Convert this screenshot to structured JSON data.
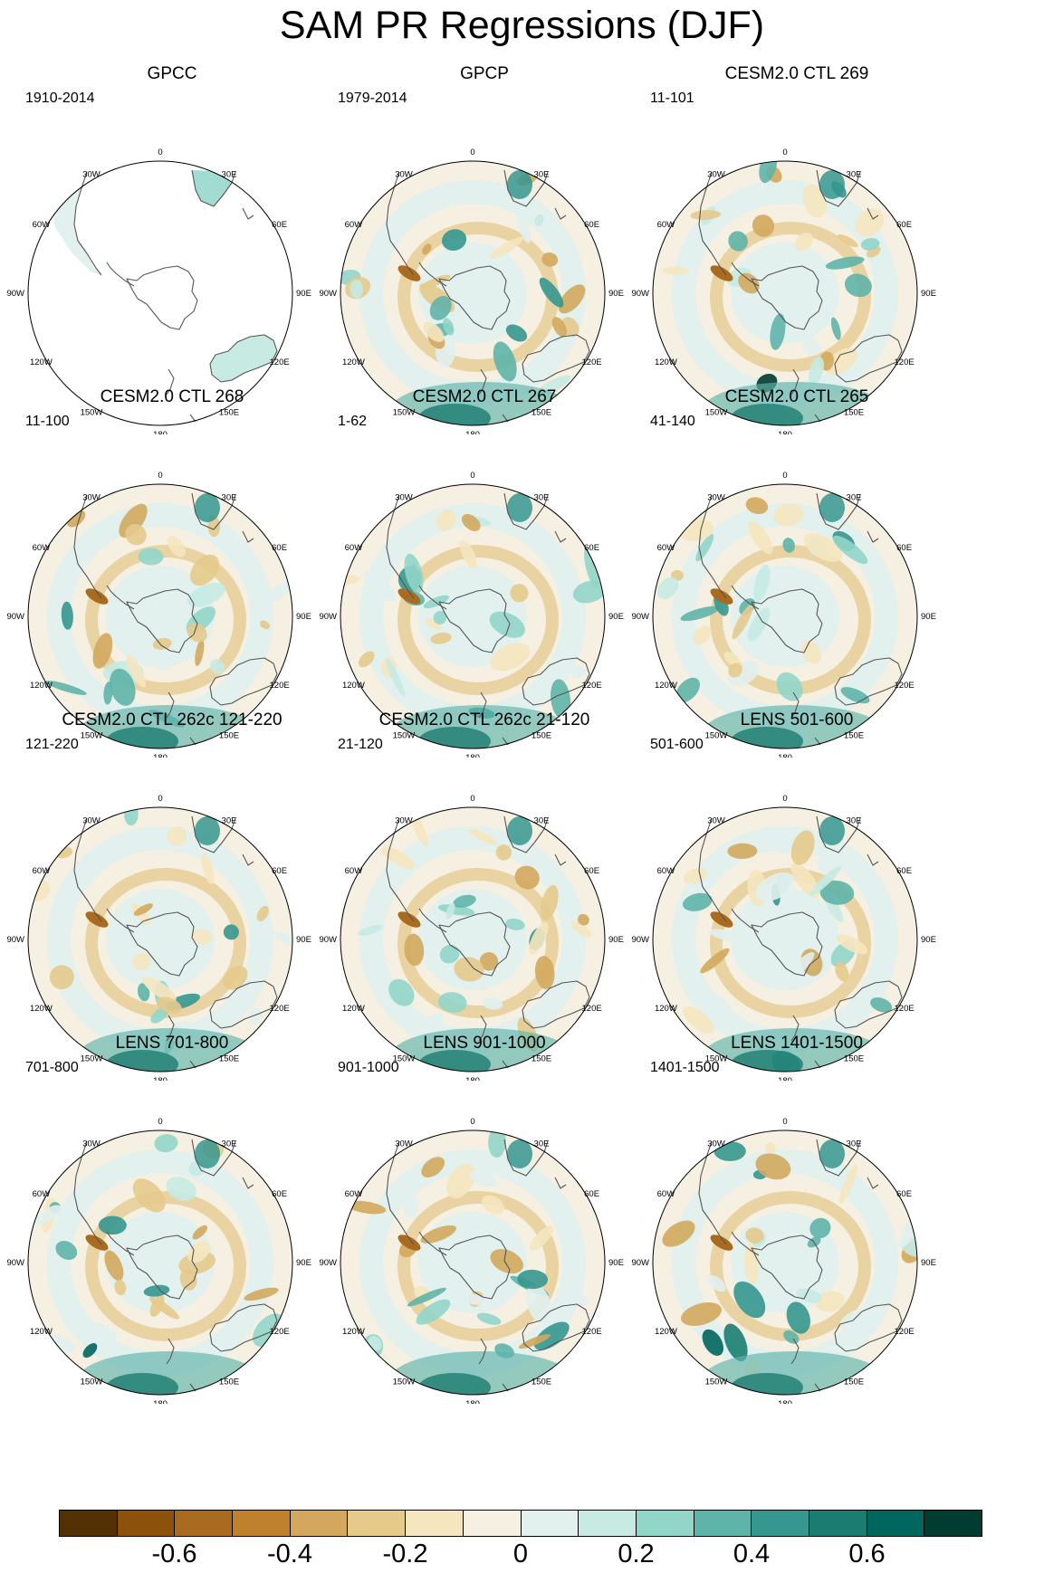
{
  "title": "SAM PR Regressions (DJF)",
  "map_labels": {
    "lon_0": "0",
    "lon_30e": "30E",
    "lon_60e": "60E",
    "lon_90e": "90E",
    "lon_120e": "120E",
    "lon_150e": "150E",
    "lon_180": "180",
    "lon_150w": "150W",
    "lon_120w": "120W",
    "lon_90w": "90W",
    "lon_60w": "60W",
    "lon_30w": "30W"
  },
  "panels": [
    {
      "title": "GPCC",
      "period": "1910-2014",
      "data_mask": "land-only"
    },
    {
      "title": "GPCP",
      "period": "1979-2014"
    },
    {
      "title": "CESM2.0 CTL 269",
      "period": "11-101"
    },
    {
      "title": "CESM2.0 CTL 268",
      "period": "11-100"
    },
    {
      "title": "CESM2.0 CTL 267",
      "period": "1-62"
    },
    {
      "title": "CESM2.0 CTL 265",
      "period": "41-140"
    },
    {
      "title": "CESM2.0 CTL 262c 121-220",
      "period": "121-220"
    },
    {
      "title": "CESM2.0 CTL 262c 21-120",
      "period": "21-120"
    },
    {
      "title": "LENS 501-600",
      "period": "501-600"
    },
    {
      "title": "LENS 701-800",
      "period": "701-800"
    },
    {
      "title": "LENS 901-1000",
      "period": "901-1000"
    },
    {
      "title": "LENS 1401-1500",
      "period": "1401-1500"
    }
  ],
  "colorbar": {
    "colors": [
      "#543005",
      "#8c510a",
      "#a96b20",
      "#bf812d",
      "#d3a85e",
      "#e6ca8c",
      "#f5e6bf",
      "#f5f0e1",
      "#e2f0ee",
      "#c7eae3",
      "#92d5c9",
      "#5fb4aa",
      "#35978f",
      "#1b7d72",
      "#01665e",
      "#003c30"
    ],
    "ticks": [
      "-0.6",
      "-0.4",
      "-0.2",
      "0",
      "0.2",
      "0.4",
      "0.6"
    ]
  }
}
